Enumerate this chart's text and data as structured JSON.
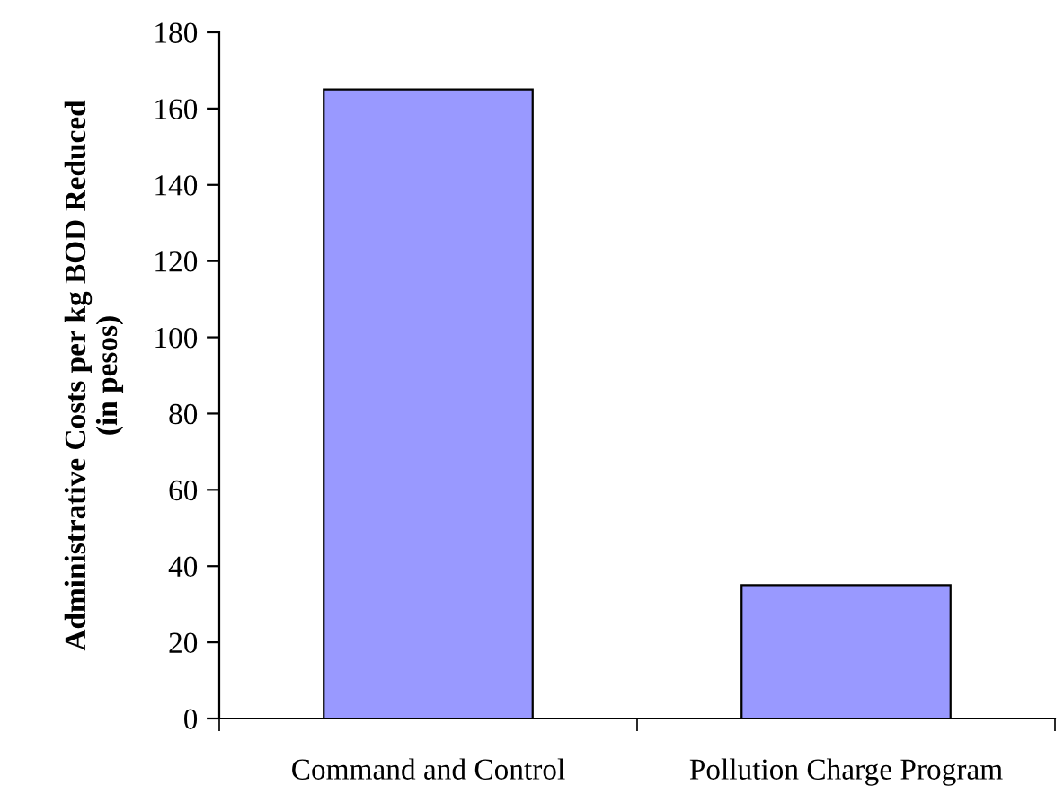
{
  "chart_data": {
    "type": "bar",
    "ylabel": "Administrative Costs per kg BOD Reduced\n(in pesos)",
    "categories": [
      "Command and Control",
      "Pollution Charge Program"
    ],
    "values": [
      165,
      35
    ],
    "color": "#9999ff",
    "ylim": [
      0,
      180
    ],
    "yticks": [
      0,
      20,
      40,
      60,
      80,
      100,
      120,
      140,
      160,
      180
    ],
    "grid": false
  }
}
